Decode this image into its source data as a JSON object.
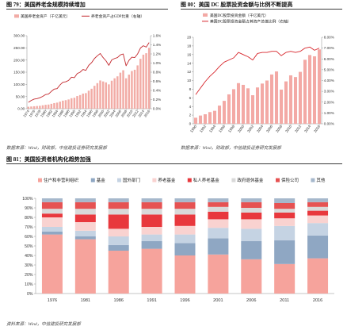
{
  "chart_data": [
    {
      "type": "bar",
      "title": "图 79：美国养老金规模持续增加",
      "source": "数据来源：Wind，财政部，中信建投证券研究发展部",
      "x": [
        1974,
        1975,
        1976,
        1977,
        1978,
        1979,
        1980,
        1981,
        1982,
        1983,
        1984,
        1985,
        1986,
        1987,
        1988,
        1989,
        1990,
        1991,
        1992,
        1993,
        1994,
        1995,
        1996,
        1997,
        1998,
        1999,
        2000,
        2001,
        2002,
        2003,
        2004,
        2005,
        2006,
        2007,
        2008,
        2009,
        2010,
        2011,
        2012,
        2013,
        2014,
        2015,
        2016
      ],
      "x_ticks": [
        "1974",
        "1976",
        "1978",
        "1980",
        "1982",
        "1984",
        "1986",
        "1988",
        "1990",
        "1992",
        "1994",
        "1996",
        "1998",
        "2000",
        "2002",
        "2004",
        "2006",
        "2008",
        "2010",
        "2012",
        "2014",
        "2016"
      ],
      "series": [
        {
          "name": "美国养老金资产（千亿美元）",
          "type": "bar",
          "axis": "left",
          "values": [
            8,
            9,
            10,
            11,
            12,
            14,
            16,
            17,
            20,
            23,
            25,
            29,
            33,
            35,
            38,
            43,
            45,
            52,
            56,
            62,
            64,
            74,
            82,
            94,
            105,
            116,
            112,
            108,
            100,
            115,
            125,
            133,
            148,
            158,
            125,
            140,
            155,
            160,
            178,
            205,
            222,
            228,
            250
          ]
        },
        {
          "name": "养老金资产占GDP比重（右轴）",
          "type": "line",
          "axis": "right",
          "values": [
            0.14,
            0.18,
            0.21,
            0.22,
            0.24,
            0.27,
            0.31,
            0.32,
            0.38,
            0.43,
            0.44,
            0.52,
            0.58,
            0.59,
            0.62,
            0.69,
            0.68,
            0.77,
            0.8,
            0.86,
            0.84,
            0.95,
            1.01,
            1.1,
            1.16,
            1.21,
            1.12,
            1.05,
            0.95,
            1.07,
            1.1,
            1.12,
            1.18,
            1.2,
            0.94,
            1.06,
            1.13,
            1.12,
            1.2,
            1.33,
            1.38,
            1.35,
            1.45
          ]
        }
      ],
      "ylim": [
        0,
        300
      ],
      "y_ticks": [
        "0.00",
        "50.00",
        "100.00",
        "150.00",
        "200.00",
        "250.00",
        "300.00"
      ],
      "y2lim": [
        0,
        1.6
      ],
      "y2_ticks": [
        "0.0%",
        "0.2%",
        "0.4%",
        "0.6%",
        "0.8%",
        "1.0%",
        "1.2%",
        "1.4%",
        "1.6%"
      ],
      "legend": "top-left",
      "grid": false,
      "colors": {
        "bar": "#F2ACA6",
        "line": "#C3282D"
      }
    },
    {
      "type": "bar",
      "title": "图 80：美国 DC 股票投资金额与比例不断提高",
      "source": "数据来源：Wind，财政部，中信建投证券研究发展部",
      "x": [
        1990,
        1991,
        1992,
        1993,
        1994,
        1995,
        1996,
        1997,
        1998,
        1999,
        2000,
        2001,
        2002,
        2003,
        2004,
        2005,
        2006,
        2007,
        2008,
        2009,
        2010,
        2011,
        2012,
        2013,
        2014,
        2015,
        2016
      ],
      "x_ticks": [
        "1990",
        "1992",
        "1994",
        "1996",
        "1998",
        "2000",
        "2002",
        "2004",
        "2006",
        "2008",
        "2010",
        "2012",
        "2014",
        "2016"
      ],
      "series": [
        {
          "name": "美国DC股票投资金额（千亿美元）",
          "type": "bar",
          "axis": "left",
          "values": [
            1.4,
            1.9,
            2.2,
            2.7,
            3.0,
            4.2,
            5.3,
            6.8,
            8.0,
            9.4,
            9.0,
            8.2,
            6.6,
            8.4,
            9.3,
            10.0,
            11.4,
            12.1,
            7.9,
            9.8,
            11.2,
            10.8,
            12.0,
            14.8,
            15.9,
            15.6,
            17.2
          ]
        },
        {
          "name": "美国DC股票投资金额占其资产总值比例（右轴）",
          "type": "line",
          "axis": "right",
          "values": [
            2.7,
            3.3,
            3.9,
            4.4,
            4.8,
            5.3,
            5.7,
            5.9,
            6.1,
            6.6,
            6.4,
            6.2,
            5.9,
            6.5,
            6.6,
            6.6,
            6.7,
            6.7,
            6.3,
            6.6,
            6.7,
            6.6,
            6.7,
            7.0,
            7.1,
            6.8,
            7.0
          ]
        }
      ],
      "ylim": [
        0,
        20
      ],
      "y_ticks": [
        "0",
        "2",
        "4",
        "6",
        "8",
        "10",
        "12",
        "14",
        "16",
        "18",
        "20"
      ],
      "y2lim": [
        0,
        8
      ],
      "y2_ticks": [
        "0.00%",
        "1.00%",
        "2.00%",
        "3.00%",
        "4.00%",
        "5.00%",
        "6.00%",
        "7.00%",
        "8.00%"
      ],
      "legend": "top-left",
      "grid": false,
      "colors": {
        "bar": "#F3A9A5",
        "line": "#D7262C"
      }
    },
    {
      "type": "bar",
      "stacked": "percent",
      "title": "图 81：美国投资者机构化趋势加强",
      "source": "资料来源：Wind，中信建投研究发展部",
      "categories": [
        "1976",
        "1981",
        "1986",
        "1991",
        "1996",
        "2001",
        "2006",
        "2011",
        "2016"
      ],
      "series": [
        {
          "name": "住户和非营利组织",
          "values": [
            62,
            57,
            45,
            47,
            40,
            41,
            36,
            31,
            37
          ]
        },
        {
          "name": "基金",
          "values": [
            3,
            3,
            6,
            8,
            13,
            17,
            19,
            25,
            24
          ]
        },
        {
          "name": "国外部门",
          "values": [
            5,
            6,
            9,
            7,
            9,
            11,
            13,
            15,
            13
          ]
        },
        {
          "name": "养老基金",
          "values": [
            10,
            9,
            8,
            8,
            9,
            9,
            10,
            8,
            8
          ]
        },
        {
          "name": "私人养老基金",
          "values": [
            4,
            8,
            15,
            13,
            12,
            8,
            7,
            6,
            5
          ]
        },
        {
          "name": "政府退休基金",
          "values": [
            5,
            6,
            6,
            6,
            6,
            5,
            5,
            4,
            4
          ]
        },
        {
          "name": "保险公司",
          "values": [
            7,
            7,
            7,
            7,
            7,
            5,
            6,
            6,
            5
          ]
        },
        {
          "name": "其他",
          "values": [
            4,
            4,
            4,
            4,
            4,
            4,
            4,
            5,
            4
          ]
        }
      ],
      "ylim": [
        0,
        100
      ],
      "y_ticks": [
        "0%",
        "10%",
        "20%",
        "30%",
        "40%",
        "50%",
        "60%",
        "70%",
        "80%",
        "90%",
        "100%"
      ],
      "legend": "top",
      "grid": false,
      "colors": [
        "#F6A39C",
        "#8FA7C3",
        "#C5D3E3",
        "#F9D2D0",
        "#E8383D",
        "#D9D9D9",
        "#E65252",
        "#A6B8CC"
      ]
    }
  ]
}
